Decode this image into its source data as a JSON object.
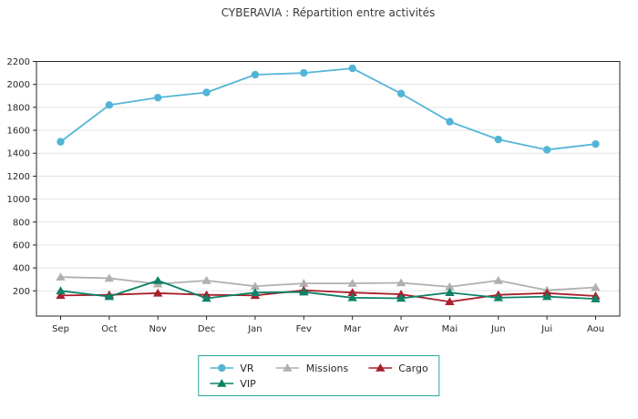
{
  "title": "CYBERAVIA : Répartition entre activités",
  "chart_data": {
    "type": "line",
    "categories": [
      "Sep",
      "Oct",
      "Nov",
      "Dec",
      "Jan",
      "Fev",
      "Mar",
      "Avr",
      "Mai",
      "Jun",
      "Jui",
      "Aou"
    ],
    "series": [
      {
        "name": "VR",
        "marker": "circle",
        "color": "#53b5d6",
        "values": [
          1500,
          1820,
          1885,
          1930,
          2085,
          2100,
          2140,
          1920,
          1675,
          1520,
          1430,
          1480
        ]
      },
      {
        "name": "Missions",
        "marker": "triangle",
        "color": "#b0b0b0",
        "values": [
          320,
          310,
          260,
          290,
          240,
          265,
          265,
          270,
          235,
          290,
          205,
          230
        ]
      },
      {
        "name": "Cargo",
        "marker": "triangle",
        "color": "#a91f2c",
        "values": [
          160,
          165,
          180,
          165,
          160,
          205,
          185,
          170,
          105,
          165,
          180,
          155
        ]
      },
      {
        "name": "VIP",
        "marker": "triangle",
        "color": "#0d8266",
        "values": [
          200,
          150,
          290,
          135,
          185,
          190,
          140,
          135,
          185,
          140,
          150,
          130
        ]
      }
    ],
    "title": "CYBERAVIA : Répartition entre activités",
    "xlabel": "",
    "ylabel": "",
    "ylim": [
      -20,
      2200
    ],
    "yticks": [
      200,
      400,
      600,
      800,
      1000,
      1200,
      1400,
      1600,
      1800,
      2000,
      2200
    ],
    "grid": "horizontal",
    "grid_color": "#e3e3e3",
    "axis_color": "#262626",
    "background": "#ffffff",
    "legend_position": "bottom-center",
    "legend_border_color": "#29a79c"
  }
}
